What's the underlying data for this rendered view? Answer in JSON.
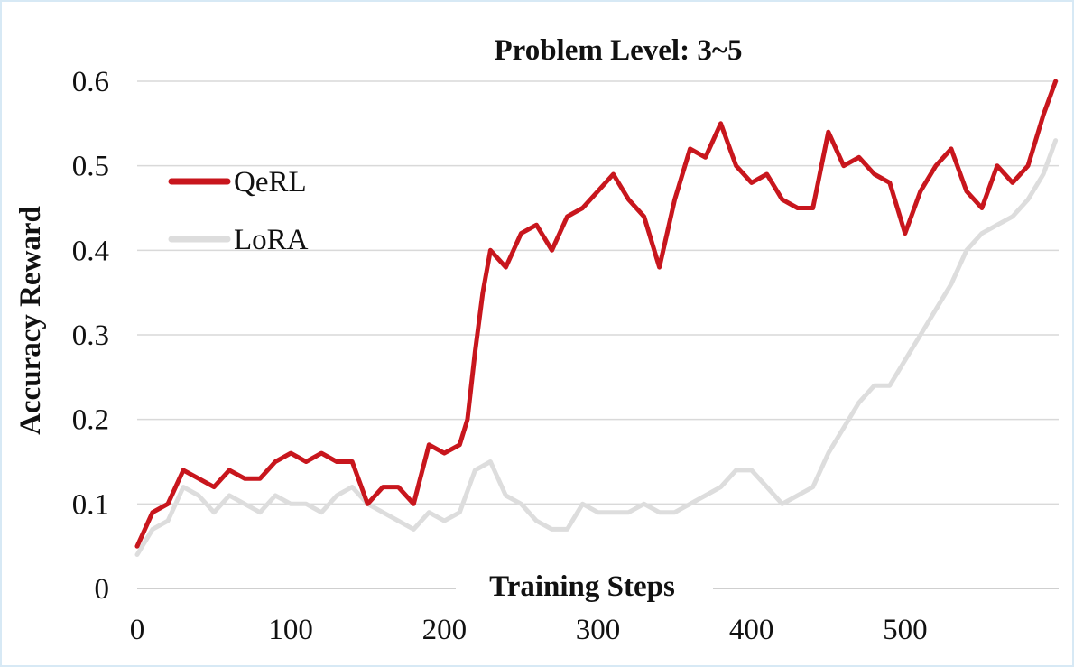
{
  "chart_data": {
    "type": "line",
    "title": "Problem Level: 3~5",
    "xlabel": "Training Steps",
    "ylabel": "Accuracy Reward",
    "xlim": [
      0,
      600
    ],
    "ylim": [
      0,
      0.6
    ],
    "x_ticks": [
      "0",
      "100",
      "200",
      "300",
      "400",
      "500"
    ],
    "y_ticks": [
      "0",
      "0.1",
      "0.2",
      "0.3",
      "0.4",
      "0.5",
      "0.6"
    ],
    "grid": true,
    "legend_position": "left",
    "series": [
      {
        "name": "QeRL",
        "color": "#c8161d",
        "x": [
          0,
          10,
          20,
          30,
          40,
          50,
          60,
          70,
          80,
          90,
          100,
          110,
          120,
          130,
          140,
          150,
          160,
          170,
          180,
          190,
          200,
          210,
          215,
          220,
          225,
          230,
          240,
          250,
          260,
          270,
          280,
          290,
          300,
          310,
          320,
          330,
          340,
          350,
          360,
          370,
          380,
          390,
          400,
          410,
          420,
          430,
          440,
          450,
          460,
          470,
          480,
          490,
          500,
          510,
          520,
          530,
          540,
          550,
          560,
          570,
          580,
          590,
          598
        ],
        "values": [
          0.05,
          0.09,
          0.1,
          0.14,
          0.13,
          0.12,
          0.14,
          0.13,
          0.13,
          0.15,
          0.16,
          0.15,
          0.16,
          0.15,
          0.15,
          0.1,
          0.12,
          0.12,
          0.1,
          0.17,
          0.16,
          0.17,
          0.2,
          0.28,
          0.35,
          0.4,
          0.38,
          0.42,
          0.43,
          0.4,
          0.44,
          0.45,
          0.47,
          0.49,
          0.46,
          0.44,
          0.38,
          0.46,
          0.52,
          0.51,
          0.55,
          0.5,
          0.48,
          0.49,
          0.46,
          0.45,
          0.45,
          0.54,
          0.5,
          0.51,
          0.49,
          0.48,
          0.42,
          0.47,
          0.5,
          0.52,
          0.47,
          0.45,
          0.5,
          0.48,
          0.5,
          0.56,
          0.6
        ]
      },
      {
        "name": "LoRA",
        "color": "#dddddd",
        "x": [
          0,
          10,
          20,
          30,
          40,
          50,
          60,
          70,
          80,
          90,
          100,
          110,
          120,
          130,
          140,
          150,
          160,
          170,
          180,
          190,
          200,
          210,
          220,
          230,
          240,
          250,
          260,
          270,
          280,
          290,
          300,
          310,
          320,
          330,
          340,
          350,
          360,
          370,
          380,
          390,
          400,
          410,
          420,
          430,
          440,
          450,
          460,
          470,
          480,
          490,
          500,
          510,
          520,
          530,
          540,
          550,
          560,
          570,
          580,
          590,
          598
        ],
        "values": [
          0.04,
          0.07,
          0.08,
          0.12,
          0.11,
          0.09,
          0.11,
          0.1,
          0.09,
          0.11,
          0.1,
          0.1,
          0.09,
          0.11,
          0.12,
          0.1,
          0.09,
          0.08,
          0.07,
          0.09,
          0.08,
          0.09,
          0.14,
          0.15,
          0.11,
          0.1,
          0.08,
          0.07,
          0.07,
          0.1,
          0.09,
          0.09,
          0.09,
          0.1,
          0.09,
          0.09,
          0.1,
          0.11,
          0.12,
          0.14,
          0.14,
          0.12,
          0.1,
          0.11,
          0.12,
          0.16,
          0.19,
          0.22,
          0.24,
          0.24,
          0.27,
          0.3,
          0.33,
          0.36,
          0.4,
          0.42,
          0.43,
          0.44,
          0.46,
          0.49,
          0.53
        ]
      }
    ]
  }
}
